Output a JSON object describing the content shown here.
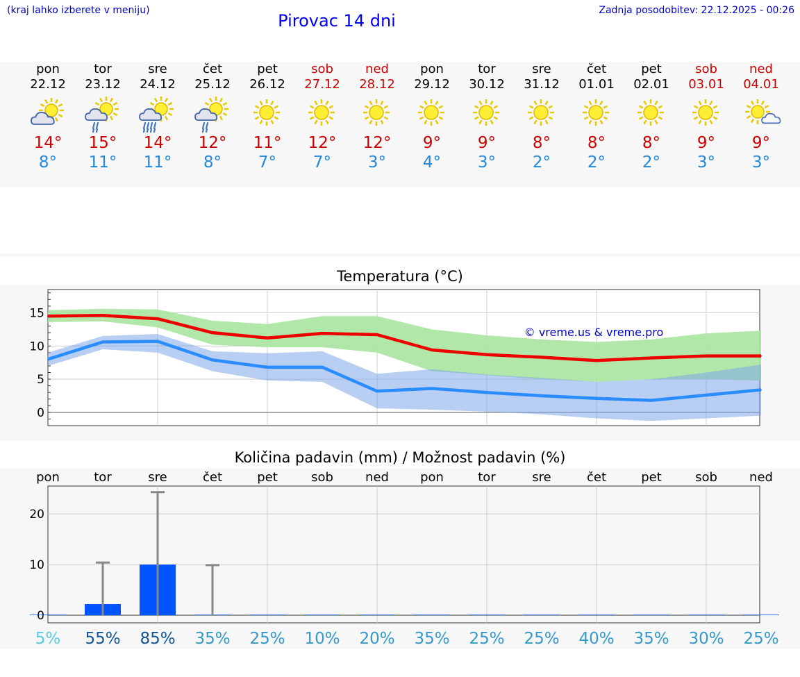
{
  "header": {
    "hint": "(kraj lahko izberete v meniju)",
    "title": "Pirovac 14 dni",
    "updated": "Zadnja posodobitev: 22.12.2025 - 00:26"
  },
  "colors": {
    "max": "#cc0000",
    "min": "#2288dd",
    "link": "#0000cc"
  },
  "days": [
    {
      "name": "pon",
      "date": "22.12",
      "weekend": false,
      "icon": "sun-cloud-icon",
      "tmax": "14°",
      "tmin": "8°"
    },
    {
      "name": "tor",
      "date": "23.12",
      "weekend": false,
      "icon": "sun-cloud-rain-icon",
      "tmax": "15°",
      "tmin": "11°"
    },
    {
      "name": "sre",
      "date": "24.12",
      "weekend": false,
      "icon": "sun-cloud-heavy-rain-icon",
      "tmax": "14°",
      "tmin": "11°"
    },
    {
      "name": "čet",
      "date": "25.12",
      "weekend": false,
      "icon": "sun-cloud-rain-icon",
      "tmax": "12°",
      "tmin": "8°"
    },
    {
      "name": "pet",
      "date": "26.12",
      "weekend": false,
      "icon": "sun-icon",
      "tmax": "11°",
      "tmin": "7°"
    },
    {
      "name": "sob",
      "date": "27.12",
      "weekend": true,
      "icon": "sun-icon",
      "tmax": "12°",
      "tmin": "7°"
    },
    {
      "name": "ned",
      "date": "28.12",
      "weekend": true,
      "icon": "sun-icon",
      "tmax": "12°",
      "tmin": "3°"
    },
    {
      "name": "pon",
      "date": "29.12",
      "weekend": false,
      "icon": "sun-icon",
      "tmax": "9°",
      "tmin": "4°"
    },
    {
      "name": "tor",
      "date": "30.12",
      "weekend": false,
      "icon": "sun-icon",
      "tmax": "9°",
      "tmin": "3°"
    },
    {
      "name": "sre",
      "date": "31.12",
      "weekend": false,
      "icon": "sun-icon",
      "tmax": "8°",
      "tmin": "2°"
    },
    {
      "name": "čet",
      "date": "01.01",
      "weekend": false,
      "icon": "sun-icon",
      "tmax": "8°",
      "tmin": "2°"
    },
    {
      "name": "pet",
      "date": "02.01",
      "weekend": false,
      "icon": "sun-icon",
      "tmax": "8°",
      "tmin": "2°"
    },
    {
      "name": "sob",
      "date": "03.01",
      "weekend": true,
      "icon": "sun-icon",
      "tmax": "9°",
      "tmin": "3°"
    },
    {
      "name": "ned",
      "date": "04.01",
      "weekend": true,
      "icon": "sun-small-cloud-icon",
      "tmax": "9°",
      "tmin": "3°"
    }
  ],
  "chart_data": [
    {
      "type": "line",
      "title": "Temperatura (°C)",
      "watermark": "© vreme.us & vreme.pro",
      "x": [
        0,
        1,
        2,
        3,
        4,
        5,
        6,
        7,
        8,
        9,
        10,
        11,
        12,
        13
      ],
      "ylim": [
        -2,
        18.5
      ],
      "yticks": [
        "0",
        "5",
        "10",
        "15"
      ],
      "yticks_values": [
        0,
        5,
        10,
        15
      ],
      "series": [
        {
          "name": "max",
          "color": "#ee0000",
          "values": [
            14.5,
            14.6,
            14.1,
            12.0,
            11.2,
            11.9,
            11.7,
            9.4,
            8.7,
            8.3,
            7.8,
            8.2,
            8.5,
            8.5
          ]
        },
        {
          "name": "max_range",
          "color": "#a8e6a0",
          "low": [
            13.6,
            13.7,
            12.8,
            10.2,
            9.8,
            9.8,
            9.0,
            6.2,
            5.6,
            5.0,
            4.6,
            5.0,
            5.0,
            4.8
          ],
          "high": [
            15.4,
            15.6,
            15.5,
            13.8,
            13.3,
            14.5,
            14.5,
            12.5,
            11.6,
            11.0,
            10.6,
            11.0,
            11.9,
            12.3
          ]
        },
        {
          "name": "min",
          "color": "#2b8cff",
          "values": [
            8.0,
            10.6,
            10.7,
            7.9,
            6.8,
            6.8,
            3.2,
            3.6,
            3.0,
            2.5,
            2.1,
            1.8,
            2.6,
            3.4
          ]
        },
        {
          "name": "min_range",
          "color": "#b0c8f0",
          "low": [
            7.0,
            9.5,
            9.0,
            6.2,
            4.8,
            4.6,
            0.6,
            0.4,
            0.1,
            -0.3,
            -0.9,
            -1.3,
            -0.9,
            -0.5
          ],
          "high": [
            9.0,
            11.5,
            11.8,
            9.2,
            8.9,
            9.2,
            5.8,
            6.5,
            5.7,
            5.2,
            4.6,
            5.0,
            6.0,
            7.2
          ]
        }
      ]
    },
    {
      "type": "bar",
      "title": "Količina padavin (mm) / Možnost padavin (%)",
      "categories": [
        "pon",
        "tor",
        "sre",
        "čet",
        "pet",
        "sob",
        "ned",
        "pon",
        "tor",
        "sre",
        "čet",
        "pet",
        "sob",
        "ned"
      ],
      "values": [
        0,
        2.2,
        10,
        0.1,
        0,
        0,
        0,
        0,
        0,
        0,
        0,
        0,
        0,
        0
      ],
      "error_high": [
        0,
        10.4,
        24.3,
        9.9,
        0,
        0,
        0,
        0,
        0,
        0,
        0,
        0,
        0,
        0
      ],
      "ylim": [
        -1.5,
        25.5
      ],
      "yticks": [
        "0",
        "10",
        "20"
      ],
      "yticks_values": [
        0,
        10,
        20
      ],
      "probabilities": [
        "5%",
        "55%",
        "85%",
        "35%",
        "25%",
        "10%",
        "20%",
        "35%",
        "25%",
        "25%",
        "40%",
        "35%",
        "30%",
        "25%"
      ],
      "probability_colors": [
        "#55ccdd",
        "#115599",
        "#115599",
        "#3399cc",
        "#3399cc",
        "#3399cc",
        "#3399cc",
        "#3399cc",
        "#3399cc",
        "#3399cc",
        "#3399cc",
        "#3399cc",
        "#3399cc",
        "#3399cc"
      ],
      "bar_color": "#0055ff",
      "error_color": "#888888"
    }
  ]
}
